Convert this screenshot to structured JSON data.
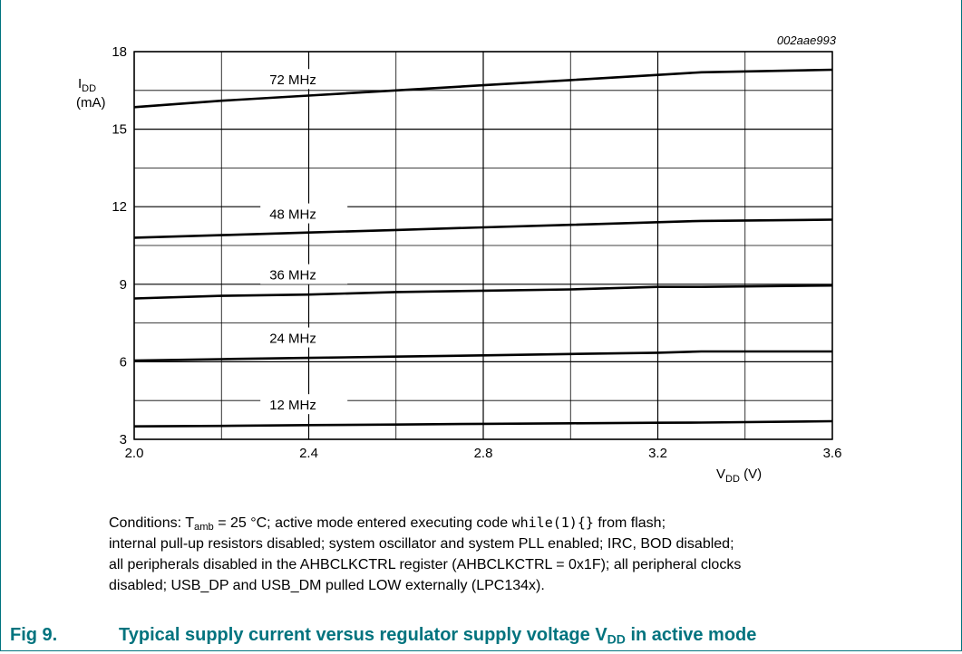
{
  "figure_id": "002aae993",
  "caption": {
    "number": "Fig 9.",
    "text_before": "Typical supply current versus regulator supply voltage V",
    "text_sub": "DD",
    "text_after": " in active mode"
  },
  "conditions": {
    "t1": "Conditions: T",
    "t1_sub": "amb",
    "t2": " = 25 °C; active mode entered executing code ",
    "code": "while(1){}",
    "t3": " from flash;",
    "line2": "internal pull-up resistors disabled; system oscillator and system PLL enabled; IRC, BOD disabled;",
    "line3": "all peripherals disabled in the AHBCLKCTRL register (AHBCLKCTRL = 0x1F); all peripheral clocks",
    "line4": "disabled; USB_DP and USB_DM pulled LOW externally (LPC134x)."
  },
  "chart_data": {
    "type": "line",
    "ylabel_main": "I",
    "ylabel_sub": "DD",
    "ylabel_unit": "(mA)",
    "xlabel_main": "V",
    "xlabel_sub": "DD",
    "xlabel_unit": " (V)",
    "xlim": [
      2.0,
      3.6
    ],
    "ylim": [
      3,
      18
    ],
    "x_ticks": [
      "2.0",
      "2.4",
      "2.8",
      "3.2",
      "3.6"
    ],
    "y_ticks": [
      "3",
      "6",
      "9",
      "12",
      "15",
      "18"
    ],
    "grid": true,
    "x": [
      2.0,
      2.2,
      2.4,
      2.6,
      2.8,
      3.0,
      3.2,
      3.3,
      3.6
    ],
    "series": [
      {
        "name": "72 MHz",
        "values": [
          15.85,
          16.1,
          16.3,
          16.5,
          16.7,
          16.9,
          17.1,
          17.2,
          17.3
        ]
      },
      {
        "name": "48 MHz",
        "values": [
          10.8,
          10.9,
          11.0,
          11.1,
          11.2,
          11.3,
          11.4,
          11.45,
          11.5
        ]
      },
      {
        "name": "36 MHz",
        "values": [
          8.45,
          8.55,
          8.6,
          8.7,
          8.75,
          8.8,
          8.9,
          8.9,
          8.95
        ]
      },
      {
        "name": "24 MHz",
        "values": [
          6.05,
          6.1,
          6.15,
          6.2,
          6.25,
          6.3,
          6.35,
          6.4,
          6.4
        ]
      },
      {
        "name": "12 MHz",
        "values": [
          3.5,
          3.52,
          3.55,
          3.57,
          3.6,
          3.62,
          3.64,
          3.65,
          3.7
        ]
      }
    ]
  }
}
